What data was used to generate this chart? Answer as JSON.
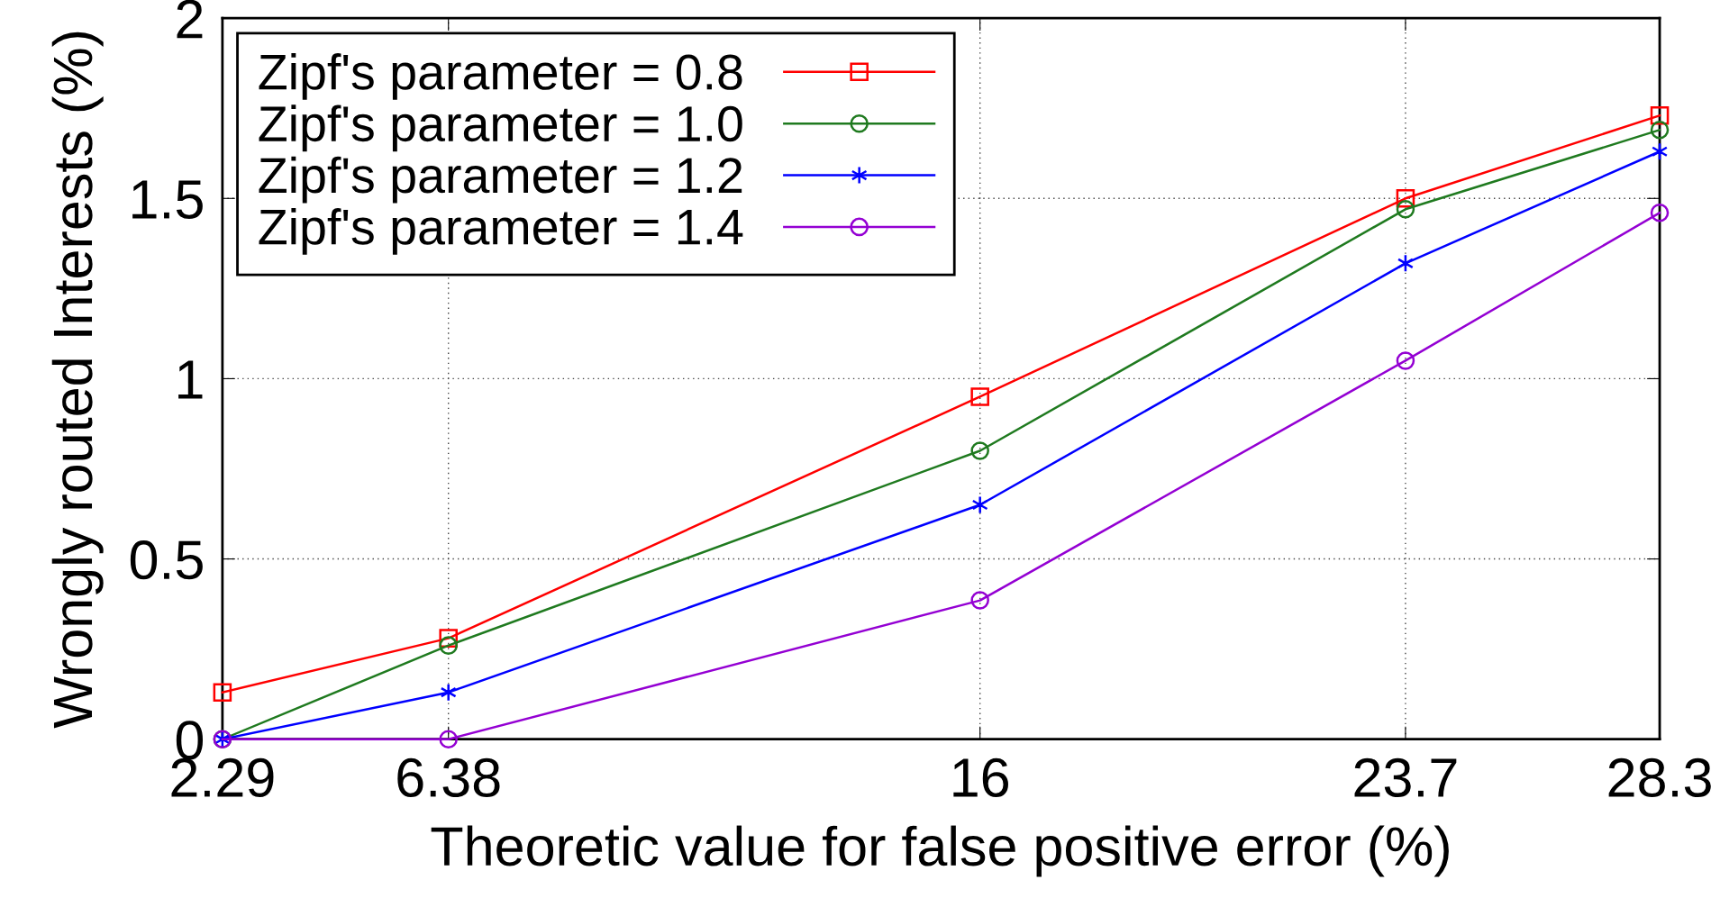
{
  "chart_data": {
    "type": "line",
    "xlabel": "Theoretic value for false positive error (%)",
    "ylabel": "Wrongly routed Interests (%)",
    "x": [
      2.29,
      6.38,
      16,
      23.7,
      28.3
    ],
    "xlim": [
      2.29,
      28.3
    ],
    "xticks": [
      2.29,
      6.38,
      16,
      23.7,
      28.3
    ],
    "ylim": [
      0,
      2
    ],
    "yticks": [
      0,
      0.5,
      1,
      1.5,
      2
    ],
    "grid": true,
    "legend": "top left",
    "line_style": "solid",
    "series": [
      {
        "name": "Zipf's parameter = 0.8",
        "color": "#ff0000",
        "marker": "square",
        "values": [
          0.13,
          0.28,
          0.95,
          1.5,
          1.73
        ]
      },
      {
        "name": "Zipf's parameter = 1.0",
        "color": "#1f7a1f",
        "marker": "circle",
        "values": [
          0,
          0.26,
          0.8,
          1.47,
          1.69
        ]
      },
      {
        "name": "Zipf's parameter = 1.2",
        "color": "#0000ff",
        "marker": "cross",
        "values": [
          0,
          0.13,
          0.65,
          1.32,
          1.63
        ]
      },
      {
        "name": "Zipf's parameter = 1.4",
        "color": "#9400d3",
        "marker": "circle",
        "values": [
          0,
          0,
          0.385,
          1.05,
          1.46
        ]
      }
    ]
  }
}
